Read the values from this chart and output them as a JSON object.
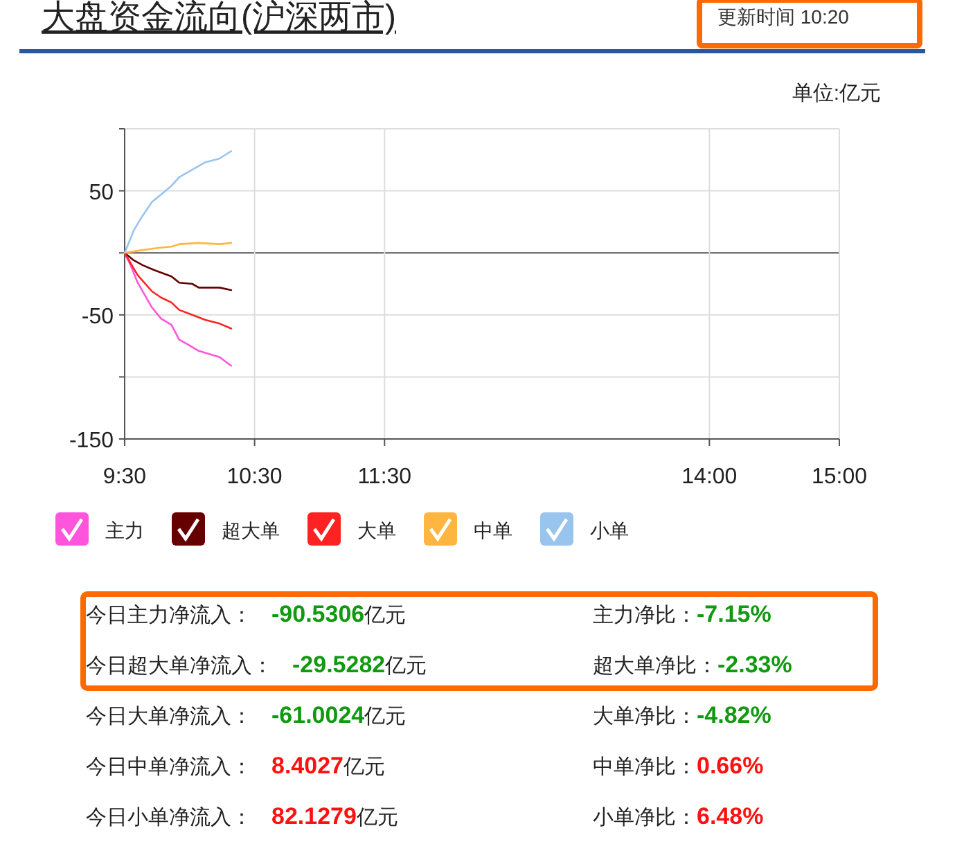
{
  "chart_data": {
    "type": "line",
    "title": "大盘资金流向(沪深两市)",
    "subtitle": "更新时间 10:20",
    "ylabel": "单位:亿元",
    "xlim": [
      9.5,
      15
    ],
    "xticks": [
      {
        "value": 9.5,
        "label": "9:30"
      },
      {
        "value": 10.5,
        "label": "10:30"
      },
      {
        "value": 11.5,
        "label": "11:30"
      },
      {
        "value": 14,
        "label": "14:00"
      },
      {
        "value": 15,
        "label": "15:00"
      }
    ],
    "ylim": [
      -150,
      100
    ],
    "yticks": [
      {
        "value": 100,
        "label": null
      },
      50,
      {
        "value": 0,
        "label": null
      },
      -50,
      {
        "value": -100,
        "label": null
      },
      -150
    ],
    "grid": true,
    "legend": "bottom",
    "series": [
      {
        "name": "主力",
        "color": "#ff55dd",
        "x": [
          9.5,
          9.55,
          9.6,
          9.71,
          9.78,
          9.86,
          9.92,
          9.99,
          10.07,
          10.23,
          10.32
        ],
        "values": [
          0,
          -11,
          -24,
          -44,
          -53,
          -58,
          -70,
          -74,
          -79,
          -84,
          -91
        ]
      },
      {
        "name": "超大单",
        "color": "#660000",
        "x": [
          9.5,
          9.57,
          9.64,
          9.73,
          9.86,
          9.92,
          10.02,
          10.07,
          10.23,
          10.32
        ],
        "values": [
          0,
          -6,
          -10,
          -14,
          -19,
          -24,
          -25,
          -28,
          -28,
          -30
        ]
      },
      {
        "name": "大单",
        "color": "#ff2222",
        "x": [
          9.5,
          9.55,
          9.6,
          9.71,
          9.78,
          9.86,
          9.92,
          10.02,
          10.12,
          10.23,
          10.32
        ],
        "values": [
          0,
          -9,
          -18,
          -31,
          -36,
          -40,
          -46,
          -50,
          -54,
          -57,
          -61
        ]
      },
      {
        "name": "中单",
        "color": "#ffb640",
        "x": [
          9.5,
          9.62,
          9.76,
          9.86,
          9.92,
          10.07,
          10.23,
          10.32
        ],
        "values": [
          0,
          2,
          4,
          5,
          7,
          8,
          7,
          8
        ]
      },
      {
        "name": "小单",
        "color": "#99c4ee",
        "x": [
          9.5,
          9.57,
          9.62,
          9.71,
          9.78,
          9.86,
          9.92,
          10.02,
          10.12,
          10.23,
          10.32
        ],
        "values": [
          0,
          18,
          27,
          41,
          47,
          54,
          61,
          67,
          73,
          76,
          82
        ]
      }
    ],
    "annotations": [
      "今日主力净流入：",
      "-90.5306亿元",
      "主力净比：",
      "-7.15%",
      "今日超大单净流入：",
      "-29.5282亿元",
      "超大单净比：",
      "-2.33%",
      "今日大单净流入：",
      "-61.0024亿元",
      "大单净比：",
      "-4.82%",
      "今日中单净流入：",
      "8.4027亿元",
      "中单净比：",
      "0.66%",
      "今日小单净流入：",
      "82.1279亿元",
      "小单净比：",
      "6.48%"
    ]
  }
}
